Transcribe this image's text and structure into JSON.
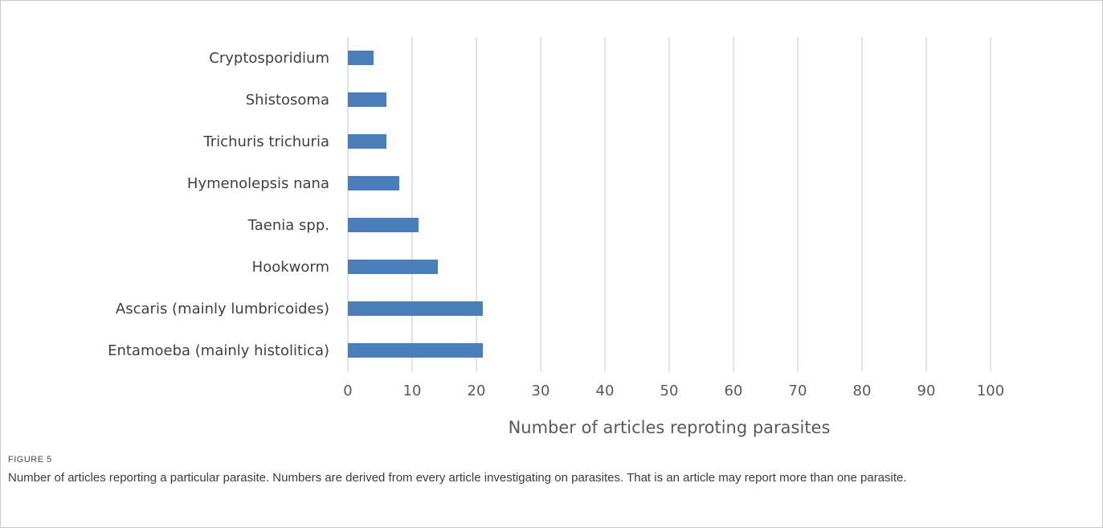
{
  "figure": {
    "label": "FIGURE 5",
    "caption": "Number of articles reporting a particular parasite. Numbers are derived from every article investigating on parasites. That is an article may report more than one parasite."
  },
  "colors": {
    "bar": "#4a7ebb",
    "grid": "#d9d9d9",
    "frame": "#c9c9c9"
  },
  "chart_data": {
    "type": "bar",
    "orientation": "horizontal",
    "categories": [
      "Cryptosporidium",
      "Shistosoma",
      "Trichuris trichuria",
      "Hymenolepsis nana",
      "Taenia spp.",
      "Hookworm",
      "Ascaris (mainly lumbricoides)",
      "Entamoeba (mainly histolitica)"
    ],
    "values": [
      4,
      6,
      6,
      8,
      11,
      14,
      21,
      21
    ],
    "xlabel": "Number of articles reproting parasites",
    "ylabel": "",
    "xlim": [
      0,
      100
    ],
    "xticks": [
      "0",
      "10",
      "20",
      "30",
      "40",
      "50",
      "60",
      "70",
      "80",
      "90",
      "100"
    ],
    "grid": "vertical",
    "legend": "none"
  }
}
